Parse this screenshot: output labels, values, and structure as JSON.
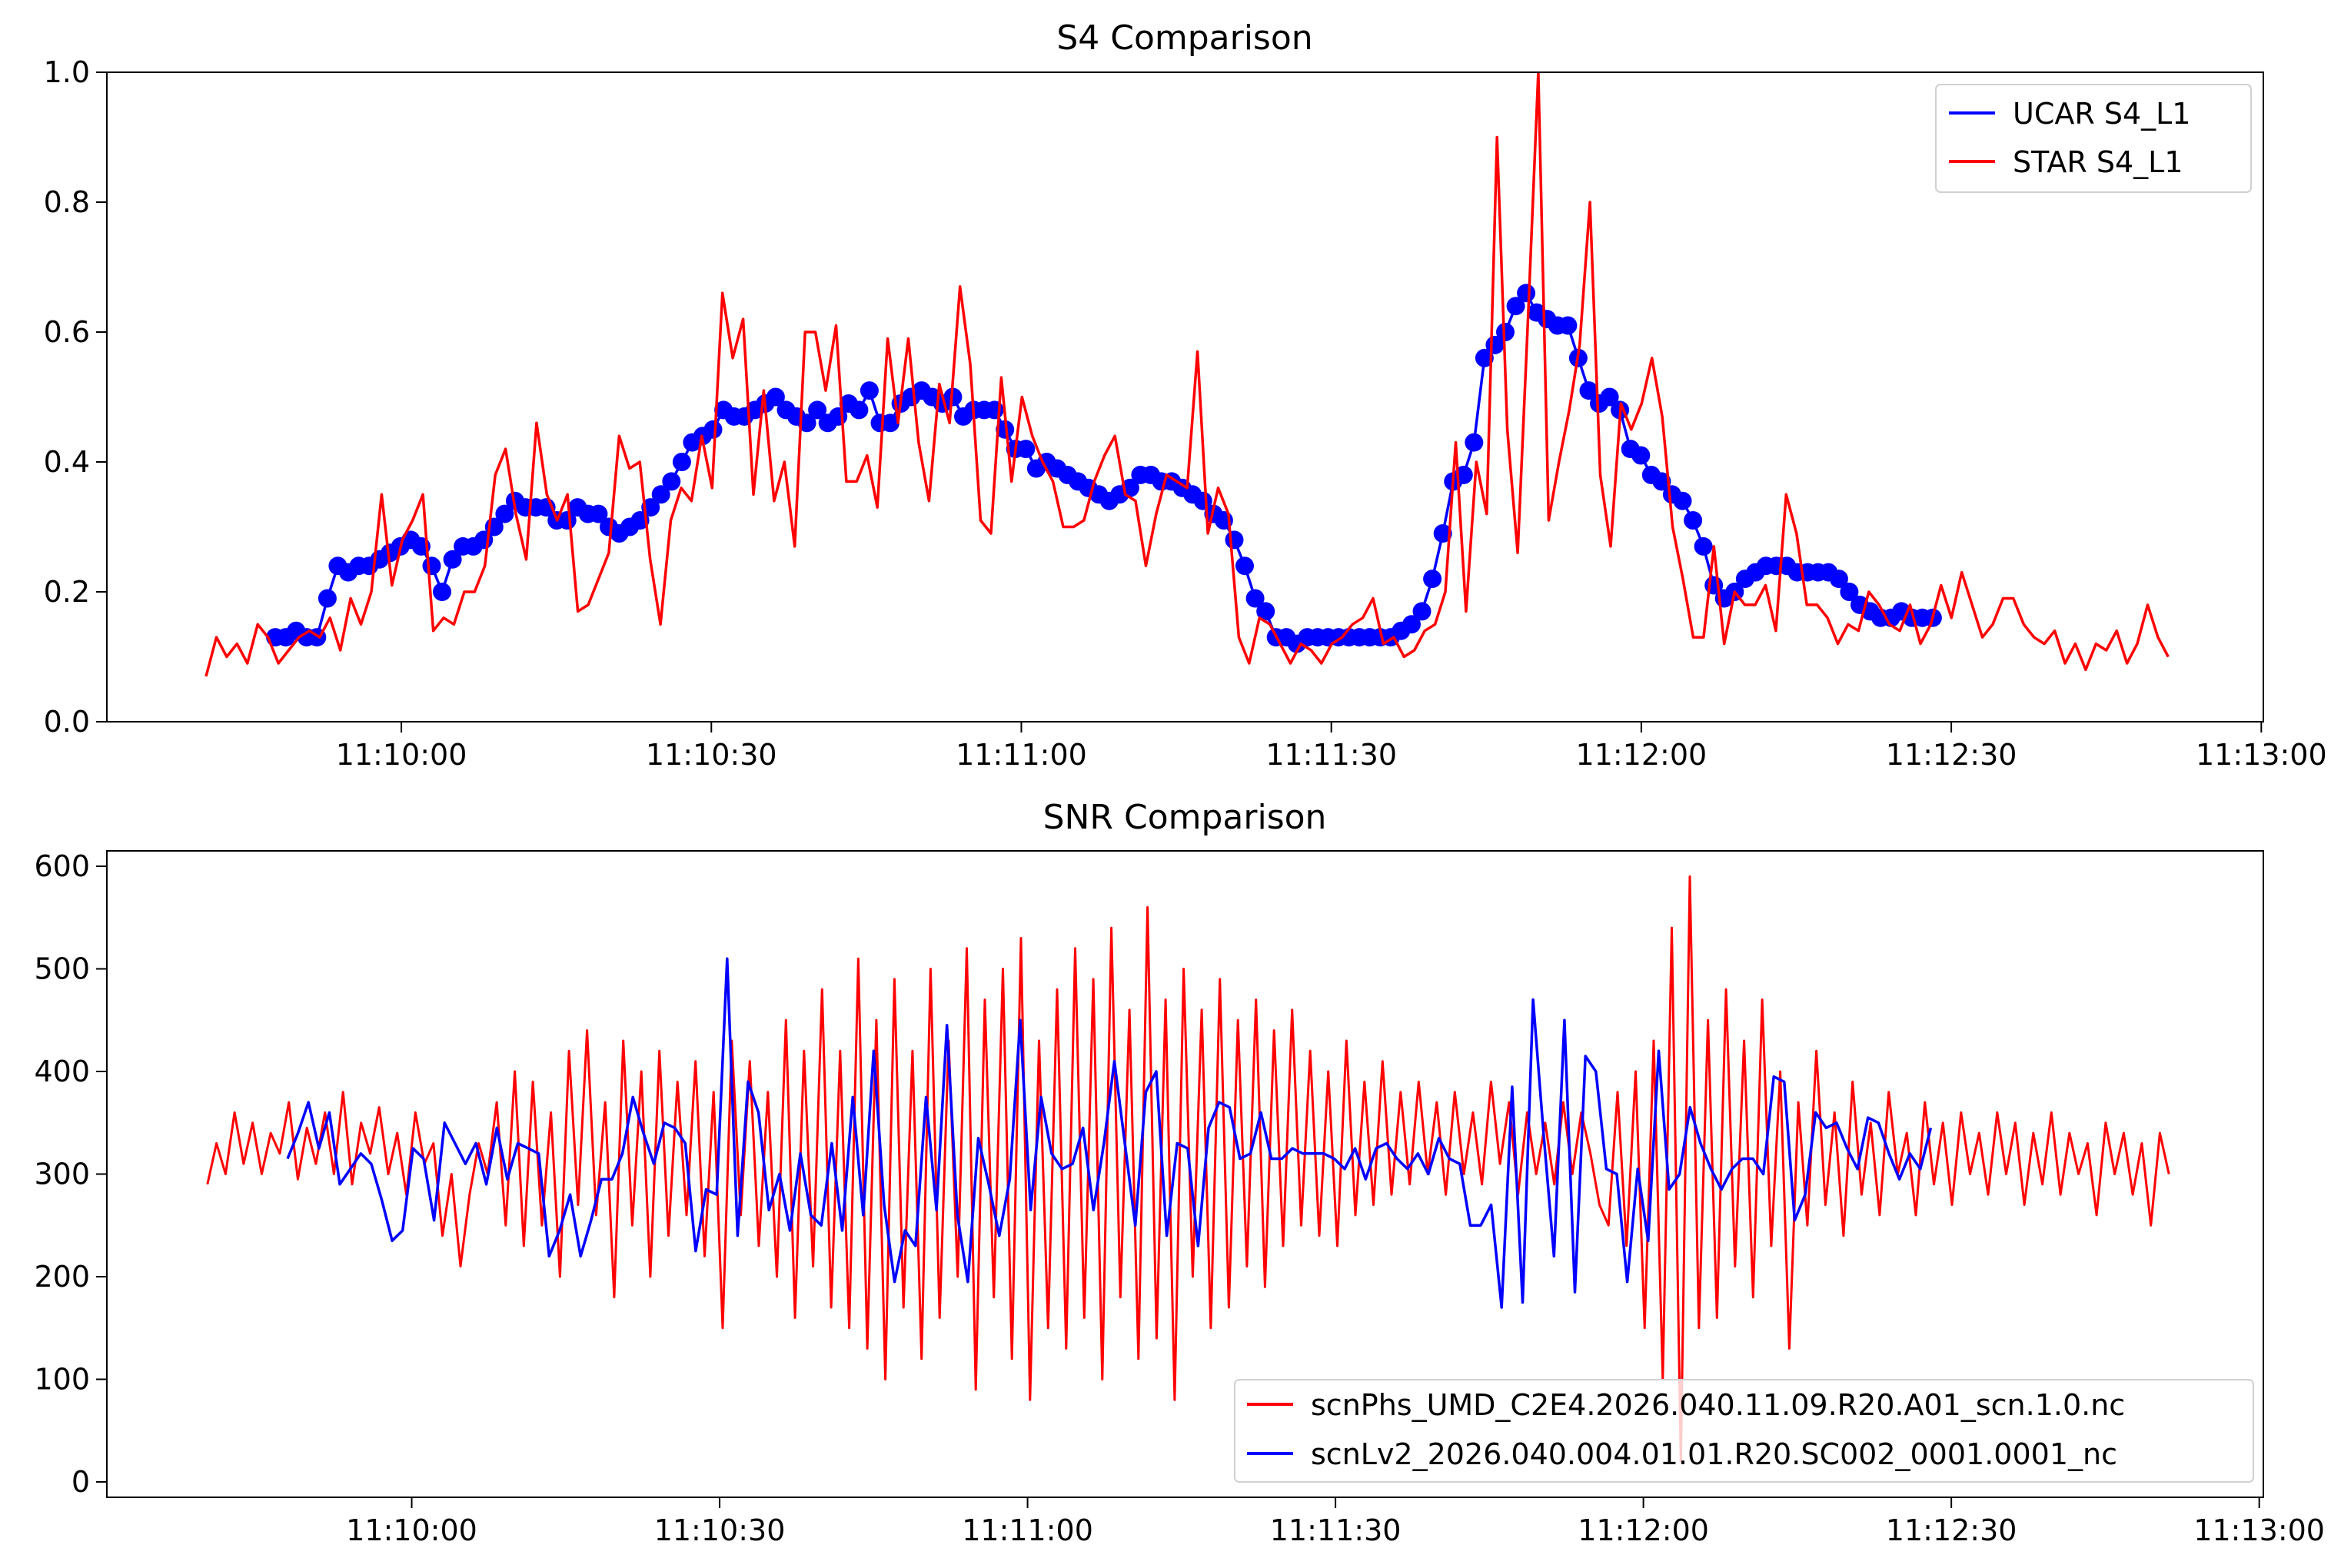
{
  "chart_data": [
    {
      "type": "line",
      "title": "S4 Comparison",
      "xlabel": "",
      "ylabel": "",
      "x_units": "seconds relative to 11:10:00",
      "xlim": [
        -28.5,
        180.2
      ],
      "ylim": [
        0.0,
        1.0
      ],
      "xticks": [
        0,
        30,
        60,
        90,
        120,
        150,
        180
      ],
      "xtick_labels": [
        "11:10:00",
        "11:10:30",
        "11:11:00",
        "11:11:30",
        "11:12:00",
        "11:12:30",
        "11:13:00"
      ],
      "yticks": [
        0.0,
        0.2,
        0.4,
        0.6,
        0.8,
        1.0
      ],
      "ytick_labels": [
        "0.0",
        "0.2",
        "0.4",
        "0.6",
        "0.8",
        "1.0"
      ],
      "grid": false,
      "legend_position": "top-right",
      "series": [
        {
          "name": "UCAR S4_L1",
          "color": "#0000ff",
          "marker": "circle",
          "x_start": -12.2,
          "x_end": 148.2,
          "values": [
            0.13,
            0.13,
            0.14,
            0.13,
            0.13,
            0.19,
            0.24,
            0.23,
            0.24,
            0.24,
            0.25,
            0.26,
            0.27,
            0.28,
            0.27,
            0.24,
            0.2,
            0.25,
            0.27,
            0.27,
            0.28,
            0.3,
            0.32,
            0.34,
            0.33,
            0.33,
            0.33,
            0.31,
            0.31,
            0.33,
            0.32,
            0.32,
            0.3,
            0.29,
            0.3,
            0.31,
            0.33,
            0.35,
            0.37,
            0.4,
            0.43,
            0.44,
            0.45,
            0.48,
            0.47,
            0.47,
            0.48,
            0.49,
            0.5,
            0.48,
            0.47,
            0.46,
            0.48,
            0.46,
            0.47,
            0.49,
            0.48,
            0.51,
            0.46,
            0.46,
            0.49,
            0.5,
            0.51,
            0.5,
            0.49,
            0.5,
            0.47,
            0.48,
            0.48,
            0.48,
            0.45,
            0.42,
            0.42,
            0.39,
            0.4,
            0.39,
            0.38,
            0.37,
            0.36,
            0.35,
            0.34,
            0.35,
            0.36,
            0.38,
            0.38,
            0.37,
            0.37,
            0.36,
            0.35,
            0.34,
            0.32,
            0.31,
            0.28,
            0.24,
            0.19,
            0.17,
            0.13,
            0.13,
            0.12,
            0.13,
            0.13,
            0.13,
            0.13,
            0.13,
            0.13,
            0.13,
            0.13,
            0.13,
            0.14,
            0.15,
            0.17,
            0.22,
            0.29,
            0.37,
            0.38,
            0.43,
            0.56,
            0.58,
            0.6,
            0.64,
            0.66,
            0.63,
            0.62,
            0.61,
            0.61,
            0.56,
            0.51,
            0.49,
            0.5,
            0.48,
            0.42,
            0.41,
            0.38,
            0.37,
            0.35,
            0.34,
            0.31,
            0.27,
            0.21,
            0.19,
            0.2,
            0.22,
            0.23,
            0.24,
            0.24,
            0.24,
            0.23,
            0.23,
            0.23,
            0.23,
            0.22,
            0.2,
            0.18,
            0.17,
            0.16,
            0.16,
            0.17,
            0.16,
            0.16,
            0.16
          ]
        },
        {
          "name": "STAR S4_L1",
          "color": "#ff0000",
          "marker": "none",
          "x_start": -18.9,
          "x_end": 171.0,
          "values": [
            0.07,
            0.13,
            0.1,
            0.12,
            0.09,
            0.15,
            0.13,
            0.09,
            0.11,
            0.13,
            0.14,
            0.13,
            0.16,
            0.11,
            0.19,
            0.15,
            0.2,
            0.35,
            0.21,
            0.28,
            0.31,
            0.35,
            0.14,
            0.16,
            0.15,
            0.2,
            0.2,
            0.24,
            0.38,
            0.42,
            0.32,
            0.25,
            0.46,
            0.35,
            0.31,
            0.35,
            0.17,
            0.18,
            0.22,
            0.26,
            0.44,
            0.39,
            0.4,
            0.25,
            0.15,
            0.31,
            0.36,
            0.34,
            0.44,
            0.36,
            0.66,
            0.56,
            0.62,
            0.35,
            0.51,
            0.34,
            0.4,
            0.27,
            0.6,
            0.6,
            0.51,
            0.61,
            0.37,
            0.37,
            0.41,
            0.33,
            0.59,
            0.46,
            0.59,
            0.43,
            0.34,
            0.52,
            0.46,
            0.67,
            0.55,
            0.31,
            0.29,
            0.53,
            0.37,
            0.5,
            0.44,
            0.4,
            0.37,
            0.3,
            0.3,
            0.31,
            0.37,
            0.41,
            0.44,
            0.35,
            0.34,
            0.24,
            0.32,
            0.38,
            0.37,
            0.36,
            0.57,
            0.29,
            0.36,
            0.32,
            0.13,
            0.09,
            0.16,
            0.15,
            0.12,
            0.09,
            0.12,
            0.11,
            0.09,
            0.12,
            0.13,
            0.15,
            0.16,
            0.19,
            0.12,
            0.13,
            0.1,
            0.11,
            0.14,
            0.15,
            0.2,
            0.43,
            0.17,
            0.4,
            0.32,
            0.9,
            0.45,
            0.26,
            0.62,
            1.0,
            0.31,
            0.4,
            0.48,
            0.58,
            0.8,
            0.38,
            0.27,
            0.49,
            0.45,
            0.49,
            0.56,
            0.47,
            0.3,
            0.22,
            0.13,
            0.13,
            0.27,
            0.12,
            0.2,
            0.18,
            0.18,
            0.21,
            0.14,
            0.35,
            0.29,
            0.18,
            0.18,
            0.16,
            0.12,
            0.15,
            0.14,
            0.2,
            0.18,
            0.15,
            0.14,
            0.18,
            0.12,
            0.15,
            0.21,
            0.16,
            0.23,
            0.18,
            0.13,
            0.15,
            0.19,
            0.19,
            0.15,
            0.13,
            0.12,
            0.14,
            0.09,
            0.12,
            0.08,
            0.12,
            0.11,
            0.14,
            0.09,
            0.12,
            0.18,
            0.13,
            0.1
          ]
        }
      ]
    },
    {
      "type": "line",
      "title": "SNR Comparison",
      "xlabel": "",
      "ylabel": "",
      "x_units": "seconds relative to 11:10:00",
      "xlim": [
        -29.7,
        180.4
      ],
      "ylim": [
        -15,
        615
      ],
      "xticks": [
        0,
        30,
        60,
        90,
        120,
        150,
        180
      ],
      "xtick_labels": [
        "11:10:00",
        "11:10:30",
        "11:11:00",
        "11:11:30",
        "11:12:00",
        "11:12:30",
        "11:13:00"
      ],
      "yticks": [
        0,
        100,
        200,
        300,
        400,
        500,
        600
      ],
      "ytick_labels": [
        "0",
        "100",
        "200",
        "300",
        "400",
        "500",
        "600"
      ],
      "grid": false,
      "legend_position": "bottom-right",
      "series": [
        {
          "name": "scnPhs_UMD_C2E4.2026.040.11.09.R20.A01_scn.1.0.nc",
          "color": "#ff0000",
          "x_start": -19.9,
          "x_end": 171.2,
          "values": [
            290,
            330,
            300,
            360,
            310,
            350,
            300,
            340,
            320,
            370,
            295,
            345,
            310,
            360,
            300,
            380,
            290,
            350,
            320,
            365,
            300,
            340,
            280,
            360,
            310,
            330,
            240,
            300,
            210,
            280,
            330,
            300,
            370,
            250,
            400,
            230,
            390,
            250,
            360,
            200,
            420,
            270,
            440,
            260,
            370,
            180,
            430,
            250,
            400,
            200,
            420,
            240,
            390,
            260,
            410,
            220,
            380,
            150,
            430,
            260,
            410,
            230,
            380,
            200,
            450,
            160,
            420,
            210,
            480,
            170,
            420,
            150,
            510,
            130,
            450,
            100,
            490,
            170,
            420,
            120,
            500,
            160,
            430,
            200,
            520,
            90,
            470,
            180,
            500,
            120,
            530,
            80,
            430,
            150,
            480,
            130,
            520,
            160,
            490,
            100,
            540,
            180,
            460,
            120,
            560,
            140,
            470,
            80,
            500,
            200,
            460,
            150,
            490,
            170,
            450,
            210,
            470,
            190,
            440,
            230,
            460,
            250,
            420,
            240,
            400,
            230,
            430,
            260,
            390,
            270,
            410,
            280,
            380,
            290,
            390,
            300,
            370,
            280,
            380,
            300,
            360,
            290,
            390,
            310,
            370,
            280,
            360,
            300,
            350,
            290,
            370,
            300,
            360,
            320,
            270,
            250,
            380,
            230,
            400,
            150,
            430,
            100,
            540,
            20,
            590,
            150,
            450,
            160,
            480,
            210,
            430,
            180,
            470,
            230,
            400,
            130,
            370,
            250,
            420,
            270,
            360,
            240,
            390,
            280,
            350,
            260,
            380,
            300,
            340,
            260,
            370,
            290,
            350,
            270,
            360,
            300,
            340,
            280,
            360,
            300,
            350,
            270,
            340,
            290,
            360,
            280,
            340,
            300,
            330,
            260,
            350,
            300,
            340,
            280,
            330,
            250,
            340,
            300
          ]
        },
        {
          "name": "scnLv2_2026.040.004.01.01.R20.SC002_0001.0001_nc",
          "color": "#0000ff",
          "x_start": -12.1,
          "x_end": 148.0,
          "values": [
            315,
            340,
            370,
            325,
            360,
            290,
            305,
            320,
            310,
            275,
            235,
            245,
            325,
            315,
            255,
            350,
            330,
            310,
            330,
            290,
            345,
            295,
            330,
            325,
            320,
            220,
            245,
            280,
            220,
            255,
            295,
            295,
            320,
            375,
            340,
            310,
            350,
            345,
            330,
            225,
            285,
            280,
            510,
            240,
            390,
            360,
            265,
            300,
            245,
            320,
            260,
            250,
            330,
            245,
            375,
            260,
            420,
            270,
            195,
            245,
            230,
            375,
            265,
            445,
            260,
            195,
            335,
            290,
            240,
            295,
            450,
            265,
            375,
            320,
            305,
            310,
            345,
            265,
            330,
            410,
            330,
            250,
            380,
            400,
            240,
            330,
            325,
            230,
            345,
            370,
            365,
            315,
            320,
            360,
            315,
            315,
            325,
            320,
            320,
            320,
            315,
            305,
            325,
            295,
            325,
            330,
            315,
            305,
            320,
            300,
            335,
            315,
            310,
            250,
            250,
            270,
            170,
            385,
            175,
            470,
            340,
            220,
            450,
            185,
            415,
            400,
            305,
            300,
            195,
            305,
            235,
            420,
            285,
            300,
            365,
            330,
            305,
            285,
            305,
            315,
            315,
            300,
            395,
            390,
            255,
            280,
            360,
            345,
            350,
            325,
            305,
            355,
            350,
            320,
            295,
            320,
            305,
            345
          ]
        }
      ]
    }
  ]
}
